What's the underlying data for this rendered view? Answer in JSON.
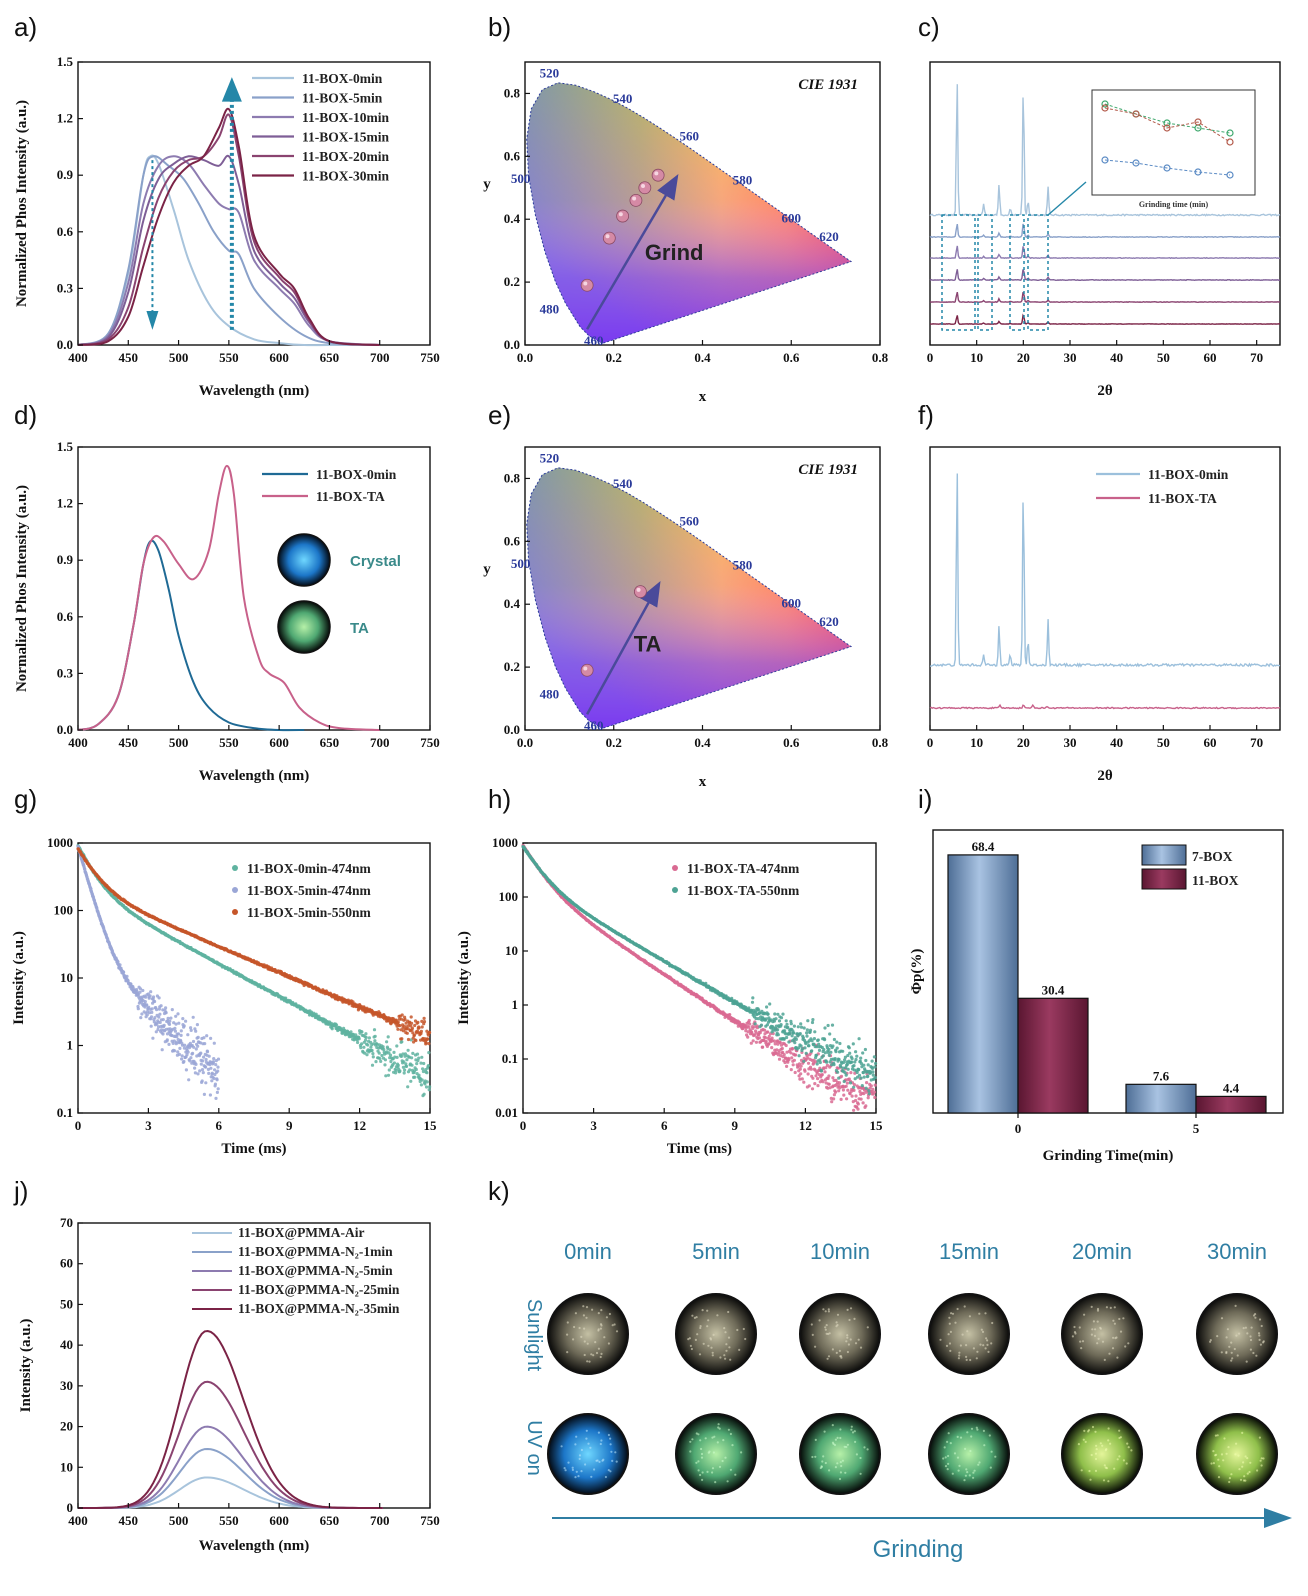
{
  "panel_labels": [
    "a)",
    "b)",
    "c)",
    "d)",
    "e)",
    "f)",
    "g)",
    "h)",
    "i)",
    "j)",
    "k)"
  ],
  "colors": {
    "blue_dark": "#1f6a95",
    "pink": "#c8618a",
    "green_teal": "#5fb3a0",
    "lavender": "#9aa6d6",
    "orange": "#c6562a",
    "arrow_teal": "#2487a8",
    "bar_blue": "#7e9fc4",
    "bar_wine": "#7b2346",
    "k_text": "#2f7ea3",
    "cie_label": "#2a3a9a"
  },
  "chart_data": [
    {
      "panel": "a)",
      "type": "line",
      "xlabel": "Wavelength (nm)",
      "ylabel": "Normalized Phos Intensity (a.u.)",
      "xlim": [
        400,
        750
      ],
      "ylim": [
        0,
        1.5
      ],
      "xticks": [
        400,
        450,
        500,
        550,
        600,
        650,
        700,
        750
      ],
      "yticks": [
        0.0,
        0.3,
        0.6,
        0.9,
        1.2,
        1.5
      ],
      "series": [
        {
          "name": "11-BOX-0min",
          "color": "#a8c4dc",
          "x": [
            400,
            430,
            450,
            465,
            472,
            480,
            495,
            510,
            530,
            550,
            575,
            600,
            625,
            650,
            700
          ],
          "y": [
            0,
            0.06,
            0.38,
            0.9,
            1.0,
            0.96,
            0.72,
            0.45,
            0.22,
            0.1,
            0.03,
            0.01,
            0,
            0,
            0
          ]
        },
        {
          "name": "11-BOX-5min",
          "color": "#8aa1c9",
          "x": [
            400,
            430,
            450,
            465,
            475,
            490,
            505,
            520,
            535,
            550,
            560,
            575,
            600,
            625,
            650,
            700
          ],
          "y": [
            0,
            0.06,
            0.4,
            0.9,
            1.0,
            0.95,
            0.88,
            0.75,
            0.6,
            0.5,
            0.48,
            0.3,
            0.15,
            0.05,
            0.01,
            0
          ]
        },
        {
          "name": "11-BOX-10min",
          "color": "#8d7bb0",
          "x": [
            400,
            430,
            450,
            465,
            480,
            495,
            510,
            525,
            540,
            550,
            560,
            575,
            600,
            615,
            630,
            650,
            700
          ],
          "y": [
            0,
            0.05,
            0.33,
            0.75,
            0.95,
            1.0,
            0.96,
            0.85,
            0.75,
            0.72,
            0.7,
            0.45,
            0.3,
            0.22,
            0.1,
            0.02,
            0
          ]
        },
        {
          "name": "11-BOX-15min",
          "color": "#7e5e96",
          "x": [
            400,
            430,
            450,
            465,
            480,
            495,
            510,
            525,
            540,
            550,
            560,
            575,
            600,
            615,
            630,
            650,
            700
          ],
          "y": [
            0,
            0.04,
            0.28,
            0.66,
            0.88,
            0.96,
            1.0,
            0.98,
            0.95,
            1.0,
            0.85,
            0.5,
            0.33,
            0.25,
            0.12,
            0.02,
            0
          ]
        },
        {
          "name": "11-BOX-20min",
          "color": "#8a4370",
          "x": [
            400,
            430,
            450,
            465,
            480,
            495,
            510,
            525,
            540,
            550,
            560,
            575,
            600,
            615,
            630,
            650,
            700
          ],
          "y": [
            0,
            0.03,
            0.2,
            0.52,
            0.78,
            0.92,
            0.98,
            1.0,
            1.1,
            1.22,
            1.0,
            0.55,
            0.36,
            0.28,
            0.13,
            0.02,
            0
          ]
        },
        {
          "name": "11-BOX-30min",
          "color": "#7b2346",
          "x": [
            400,
            430,
            450,
            465,
            480,
            495,
            510,
            525,
            540,
            550,
            560,
            575,
            600,
            615,
            630,
            650,
            700
          ],
          "y": [
            0,
            0.02,
            0.15,
            0.42,
            0.68,
            0.86,
            0.95,
            1.0,
            1.15,
            1.25,
            1.05,
            0.58,
            0.38,
            0.3,
            0.14,
            0.02,
            0
          ]
        }
      ]
    },
    {
      "panel": "b)",
      "type": "scatter",
      "title": "CIE 1931",
      "xlabel": "x",
      "ylabel": "y",
      "xlim": [
        0.0,
        0.8
      ],
      "ylim": [
        0.0,
        0.9
      ],
      "xticks": [
        0.0,
        0.2,
        0.4,
        0.6,
        0.8
      ],
      "yticks": [
        0.0,
        0.2,
        0.4,
        0.6,
        0.8
      ],
      "locus_labels": [
        "460",
        "480",
        "500",
        "520",
        "540",
        "560",
        "580",
        "600",
        "620"
      ],
      "points": {
        "x": [
          0.14,
          0.19,
          0.22,
          0.25,
          0.27,
          0.3
        ],
        "y": [
          0.19,
          0.34,
          0.41,
          0.46,
          0.5,
          0.54
        ]
      },
      "annotation": "Grind"
    },
    {
      "panel": "c)",
      "type": "line",
      "xlabel": "2θ",
      "xlim": [
        0,
        75
      ],
      "xticks": [
        0,
        10,
        20,
        30,
        40,
        50,
        60,
        70
      ],
      "inset_xlabel": "Grinding time (min)"
    },
    {
      "panel": "d)",
      "type": "line",
      "xlabel": "Wavelength (nm)",
      "ylabel": "Normalized Phos Intensity (a.u.)",
      "xlim": [
        400,
        750
      ],
      "ylim": [
        0,
        1.5
      ],
      "xticks": [
        400,
        450,
        500,
        550,
        600,
        650,
        700,
        750
      ],
      "yticks": [
        0.0,
        0.3,
        0.6,
        0.9,
        1.2,
        1.5
      ],
      "photo_labels": [
        "Crystal",
        "TA"
      ],
      "series": [
        {
          "name": "11-BOX-0min",
          "color": "#1f6a95",
          "x": [
            400,
            420,
            440,
            455,
            465,
            472,
            480,
            490,
            500,
            515,
            530,
            550,
            575,
            600,
            625
          ],
          "y": [
            0,
            0.03,
            0.18,
            0.55,
            0.88,
            1.0,
            0.95,
            0.75,
            0.5,
            0.25,
            0.12,
            0.04,
            0.01,
            0,
            0
          ]
        },
        {
          "name": "11-BOX-TA",
          "color": "#c8618a",
          "x": [
            400,
            420,
            440,
            455,
            465,
            475,
            485,
            500,
            515,
            530,
            540,
            548,
            555,
            565,
            580,
            590,
            605,
            620,
            640,
            660,
            700
          ],
          "y": [
            0,
            0.03,
            0.18,
            0.55,
            0.88,
            1.02,
            1.0,
            0.88,
            0.8,
            0.95,
            1.25,
            1.4,
            1.25,
            0.7,
            0.38,
            0.3,
            0.25,
            0.12,
            0.04,
            0.01,
            0
          ]
        }
      ]
    },
    {
      "panel": "e)",
      "type": "scatter",
      "title": "CIE 1931",
      "xlabel": "x",
      "ylabel": "y",
      "xlim": [
        0.0,
        0.8
      ],
      "ylim": [
        0.0,
        0.9
      ],
      "xticks": [
        0.0,
        0.2,
        0.4,
        0.6,
        0.8
      ],
      "yticks": [
        0.0,
        0.2,
        0.4,
        0.6,
        0.8
      ],
      "locus_labels": [
        "460",
        "480",
        "500",
        "520",
        "540",
        "560",
        "580",
        "600",
        "620"
      ],
      "points": {
        "x": [
          0.14,
          0.26
        ],
        "y": [
          0.19,
          0.44
        ]
      },
      "annotation": "TA"
    },
    {
      "panel": "f)",
      "type": "line",
      "xlabel": "2θ",
      "xlim": [
        0,
        75
      ],
      "xticks": [
        0,
        10,
        20,
        30,
        40,
        50,
        60,
        70
      ],
      "series": [
        {
          "name": "11-BOX-0min",
          "color": "#9cc0dc",
          "peaks": [
            5.8,
            11.5,
            14.8,
            17.2,
            20.0,
            21.0,
            25.3
          ]
        },
        {
          "name": "11-BOX-TA",
          "color": "#c8618a"
        }
      ]
    },
    {
      "panel": "g)",
      "type": "scatter",
      "xlabel": "Time (ms)",
      "ylabel": "Intensity (a.u.)",
      "xlim": [
        0,
        15
      ],
      "ylim": [
        0.1,
        1000
      ],
      "yscale": "log",
      "xticks": [
        0,
        3,
        6,
        9,
        12,
        15
      ],
      "yticks": [
        "0.1",
        "1",
        "10",
        "100",
        "1000"
      ],
      "series": [
        {
          "name": "11-BOX-0min-474nm",
          "color": "#5fb3a0"
        },
        {
          "name": "11-BOX-5min-474nm",
          "color": "#9aa6d6"
        },
        {
          "name": "11-BOX-5min-550nm",
          "color": "#c6562a"
        }
      ]
    },
    {
      "panel": "h)",
      "type": "scatter",
      "xlabel": "Time (ms)",
      "ylabel": "Intensity (a.u.)",
      "xlim": [
        0,
        15
      ],
      "ylim": [
        0.01,
        1000
      ],
      "yscale": "log",
      "xticks": [
        0,
        3,
        6,
        9,
        12,
        15
      ],
      "yticks": [
        "0.01",
        "0.1",
        "1",
        "10",
        "100",
        "1000"
      ],
      "series": [
        {
          "name": "11-BOX-TA-474nm",
          "color": "#d96a92"
        },
        {
          "name": "11-BOX-TA-550nm",
          "color": "#4ea394"
        }
      ]
    },
    {
      "panel": "i)",
      "type": "bar",
      "xlabel": "Grinding Time(min)",
      "ylabel": "Φp(%)",
      "categories": [
        "0",
        "5"
      ],
      "ylim": [
        0,
        75
      ],
      "series": [
        {
          "name": "7-BOX",
          "color": "#7e9fc4",
          "values": [
            68.4,
            7.6
          ]
        },
        {
          "name": "11-BOX",
          "color": "#7b2346",
          "values": [
            30.4,
            4.4
          ]
        }
      ]
    },
    {
      "panel": "j)",
      "type": "line",
      "xlabel": "Wavelength (nm)",
      "ylabel": "Intensity (a.u.)",
      "xlim": [
        400,
        750
      ],
      "ylim": [
        0,
        70
      ],
      "xticks": [
        400,
        450,
        500,
        550,
        600,
        650,
        700,
        750
      ],
      "yticks": [
        0,
        10,
        20,
        30,
        40,
        50,
        60,
        70
      ],
      "series": [
        {
          "name": "11-BOX@PMMA-Air",
          "color": "#a8c4dc",
          "peak": 7.5
        },
        {
          "name": "11-BOX@PMMA-N₂-1min",
          "color": "#8aa1c9",
          "peak": 14.5
        },
        {
          "name": "11-BOX@PMMA-N₂-5min",
          "color": "#8d7bb0",
          "peak": 20
        },
        {
          "name": "11-BOX@PMMA-N₂-25min",
          "color": "#8a4370",
          "peak": 31
        },
        {
          "name": "11-BOX@PMMA-N₂-35min",
          "color": "#7b2346",
          "peak": 43.5
        }
      ]
    }
  ],
  "panel_k": {
    "times": [
      "0min",
      "5min",
      "10min",
      "15min",
      "20min",
      "30min"
    ],
    "rows": [
      "Sunlight",
      "UV on"
    ],
    "arrow_label": "Grinding"
  }
}
